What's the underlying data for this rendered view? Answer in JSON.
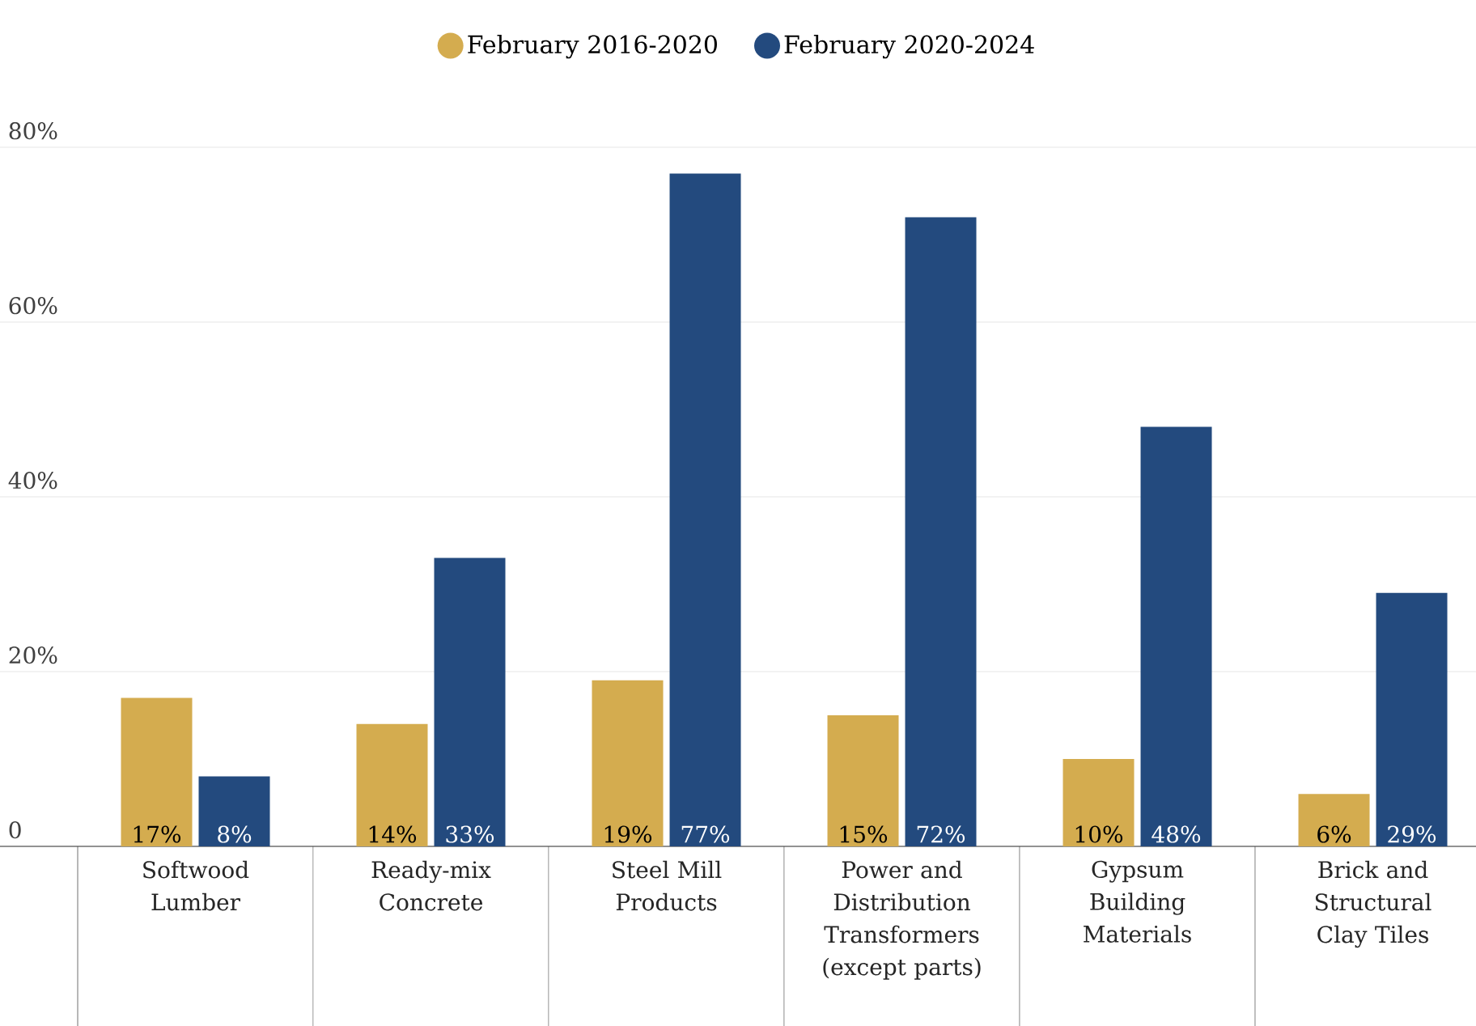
{
  "chart_data": {
    "type": "bar",
    "categories": [
      "Softwood Lumber",
      "Ready-mix Concrete",
      "Steel Mill Products",
      "Power and Distribution Transformers (except parts)",
      "Gypsum Building Materials",
      "Brick and Structural Clay Tiles"
    ],
    "series": [
      {
        "name": "February 2016-2020",
        "color": "#d4ac4f",
        "values": [
          17,
          14,
          19,
          15,
          10,
          6
        ],
        "value_labels": [
          "17%",
          "14%",
          "19%",
          "15%",
          "10%",
          "6%"
        ]
      },
      {
        "name": "February 2020-2024",
        "color": "#234a7e",
        "values": [
          8,
          33,
          77,
          72,
          48,
          29
        ],
        "value_labels": [
          "8%",
          "33%",
          "77%",
          "72%",
          "48%",
          "29%"
        ]
      }
    ],
    "ylim": [
      0,
      80
    ],
    "yticks": [
      0,
      {
        "value": 20,
        "label": "20%"
      },
      {
        "value": 40,
        "label": "40%"
      },
      {
        "value": 60,
        "label": "60%"
      },
      {
        "value": 80,
        "label": "80%"
      }
    ],
    "grid": "y",
    "legend": "top"
  }
}
